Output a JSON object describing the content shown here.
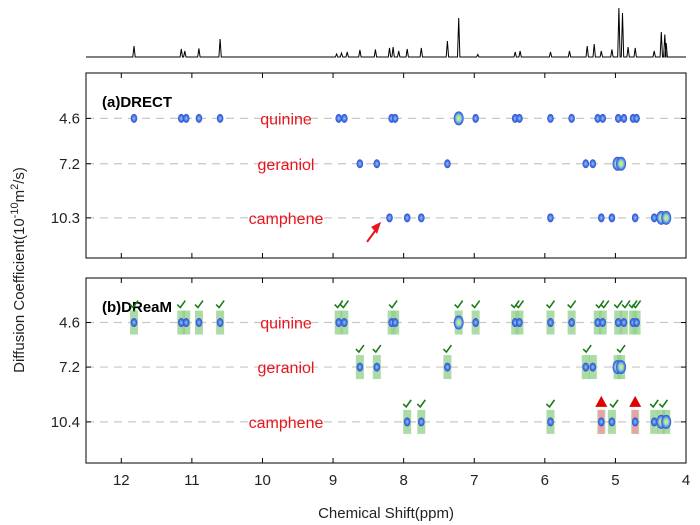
{
  "chart_data": {
    "type": "scatter",
    "xlabel": "Chemical Shift(ppm)",
    "ylabel_main": "Diffusion Coefficient(10",
    "ylabel_sup1": "-10",
    "ylabel_mid": "m",
    "ylabel_sup2": "2",
    "ylabel_end": "/s)",
    "xlim": [
      12.5,
      4.0
    ],
    "x_ticks": [
      "12",
      "11",
      "10",
      "9",
      "8",
      "7",
      "6",
      "5",
      "4"
    ],
    "x_tick_values": [
      12,
      11,
      10,
      9,
      8,
      7,
      6,
      5,
      4
    ],
    "colors": {
      "label": "#e8141e",
      "spot_outer": "#3b3fd6",
      "spot_inner": "#8fd0f0",
      "spot_hot": "#f5e94a",
      "highlight": "#8fd08a",
      "false_peak": "#f29aa6",
      "check": "#1a7a1a",
      "triangle": "#e00000",
      "arrow": "#e8141e",
      "dash": "#c8c8c8"
    },
    "spectrum": {
      "peaks": [
        {
          "x": 11.82,
          "h": 0.22
        },
        {
          "x": 11.15,
          "h": 0.16
        },
        {
          "x": 11.1,
          "h": 0.12
        },
        {
          "x": 10.9,
          "h": 0.17
        },
        {
          "x": 10.6,
          "h": 0.36
        },
        {
          "x": 8.95,
          "h": 0.06
        },
        {
          "x": 8.88,
          "h": 0.08
        },
        {
          "x": 8.8,
          "h": 0.1
        },
        {
          "x": 8.62,
          "h": 0.14
        },
        {
          "x": 8.4,
          "h": 0.15
        },
        {
          "x": 8.2,
          "h": 0.18
        },
        {
          "x": 8.15,
          "h": 0.2
        },
        {
          "x": 8.07,
          "h": 0.12
        },
        {
          "x": 7.95,
          "h": 0.16
        },
        {
          "x": 7.75,
          "h": 0.18
        },
        {
          "x": 7.38,
          "h": 0.32
        },
        {
          "x": 7.22,
          "h": 0.78
        },
        {
          "x": 6.95,
          "h": 0.05
        },
        {
          "x": 6.42,
          "h": 0.1
        },
        {
          "x": 6.35,
          "h": 0.12
        },
        {
          "x": 5.92,
          "h": 0.1
        },
        {
          "x": 5.65,
          "h": 0.12
        },
        {
          "x": 5.4,
          "h": 0.22
        },
        {
          "x": 5.3,
          "h": 0.26
        },
        {
          "x": 5.2,
          "h": 0.12
        },
        {
          "x": 5.05,
          "h": 0.15
        },
        {
          "x": 4.95,
          "h": 0.98
        },
        {
          "x": 4.9,
          "h": 0.88
        },
        {
          "x": 4.82,
          "h": 0.2
        },
        {
          "x": 4.72,
          "h": 0.18
        },
        {
          "x": 4.45,
          "h": 0.12
        },
        {
          "x": 4.35,
          "h": 0.5
        },
        {
          "x": 4.3,
          "h": 0.45
        },
        {
          "x": 4.28,
          "h": 0.28
        }
      ]
    },
    "panels": [
      {
        "id": "a",
        "title": "(a)DRECT",
        "ylim": [
          2.0,
          12.6
        ],
        "y_ticks": [
          "4.6",
          "7.2",
          "10.3"
        ],
        "y_tick_values": [
          4.6,
          7.2,
          10.3
        ],
        "series": [
          {
            "name": "quinine",
            "y": 4.6,
            "points": [
              11.82,
              11.15,
              11.08,
              10.9,
              10.6,
              8.92,
              8.84,
              8.17,
              8.12,
              7.22,
              6.98,
              6.42,
              6.36,
              5.92,
              5.62,
              5.25,
              5.18,
              4.96,
              4.88,
              4.75,
              4.7
            ],
            "hot": [
              7.22
            ]
          },
          {
            "name": "geraniol",
            "y": 7.2,
            "points": [
              8.62,
              8.38,
              7.38,
              5.42,
              5.32,
              4.97,
              4.92
            ],
            "hot": [
              4.94
            ]
          },
          {
            "name": "camphene",
            "y": 10.3,
            "points": [
              8.2,
              7.95,
              7.75,
              5.92,
              5.2,
              5.05,
              4.72,
              4.45,
              4.35,
              4.28
            ],
            "hot": [
              4.3
            ]
          }
        ],
        "arrow_x": 8.32
      },
      {
        "id": "b",
        "title": "(b)DReaM",
        "ylim": [
          2.0,
          12.8
        ],
        "y_ticks": [
          "4.6",
          "7.2",
          "10.4"
        ],
        "y_tick_values": [
          4.6,
          7.2,
          10.4
        ],
        "series": [
          {
            "name": "quinine",
            "y": 4.6,
            "points": [
              11.82,
              11.15,
              11.08,
              10.9,
              10.6,
              8.92,
              8.84,
              8.17,
              8.12,
              7.22,
              6.98,
              6.42,
              6.36,
              5.92,
              5.62,
              5.25,
              5.18,
              4.96,
              4.88,
              4.75,
              4.7
            ],
            "hot": [
              7.22
            ],
            "checks": [
              11.82,
              11.15,
              10.9,
              10.6,
              8.92,
              8.84,
              8.15,
              7.22,
              6.98,
              6.42,
              6.36,
              5.92,
              5.62,
              5.22,
              5.15,
              4.96,
              4.85,
              4.75,
              4.7
            ]
          },
          {
            "name": "geraniol",
            "y": 7.2,
            "points": [
              8.62,
              8.38,
              7.38,
              5.42,
              5.32,
              4.97,
              4.92
            ],
            "hot": [
              4.94
            ],
            "checks": [
              8.62,
              8.38,
              7.38,
              5.4,
              4.92
            ]
          },
          {
            "name": "camphene",
            "y": 10.4,
            "points": [
              7.95,
              7.75,
              5.92,
              5.2,
              5.05,
              4.72,
              4.45,
              4.35,
              4.28
            ],
            "hot": [
              4.32
            ],
            "checks": [
              7.95,
              7.75,
              5.92,
              5.02,
              4.45,
              4.32
            ],
            "false_peaks": [
              5.2,
              4.72
            ]
          }
        ]
      }
    ]
  }
}
